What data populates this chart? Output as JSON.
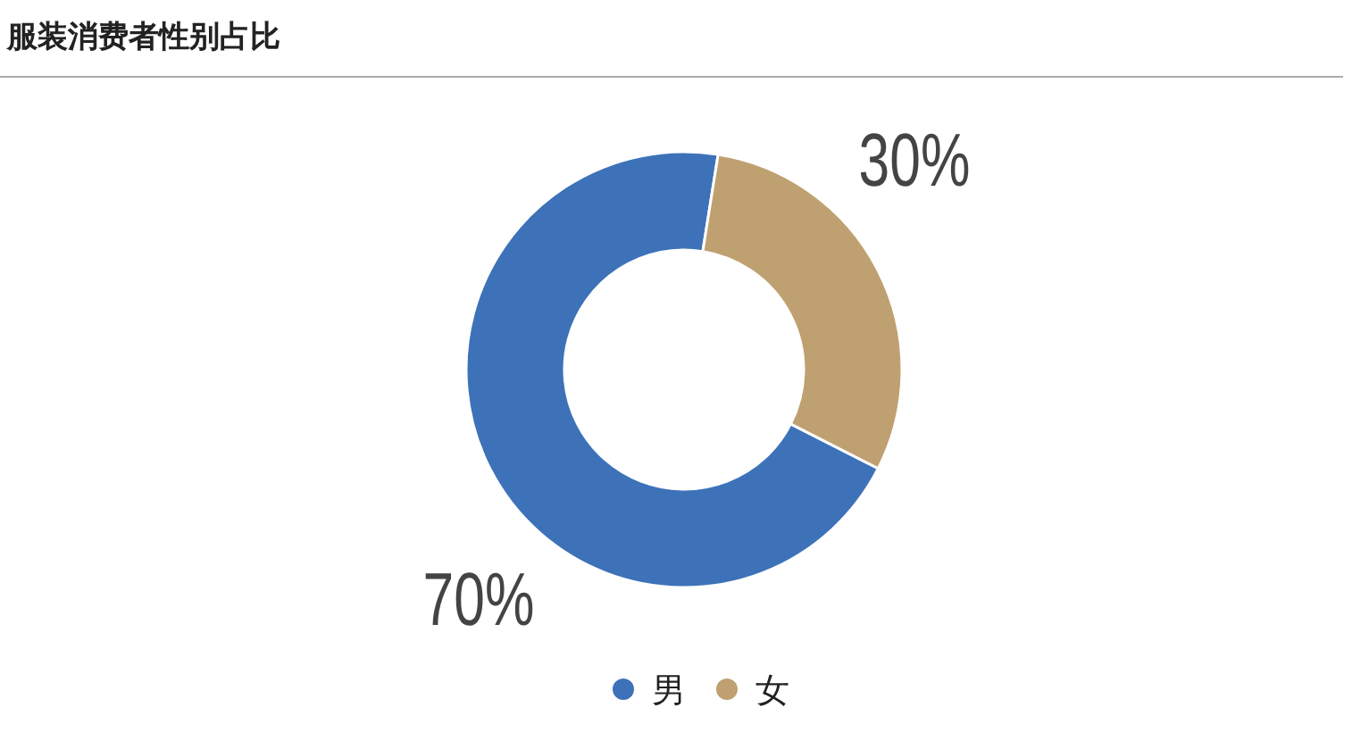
{
  "chart_data": {
    "type": "donut",
    "title": "服装消费者性别占比",
    "categories": [
      "男",
      "女"
    ],
    "values": [
      70,
      30
    ],
    "colors": [
      "#3d72b9",
      "#bfa070"
    ],
    "value_labels": [
      "70%",
      "30%"
    ],
    "legend": "bottom"
  }
}
